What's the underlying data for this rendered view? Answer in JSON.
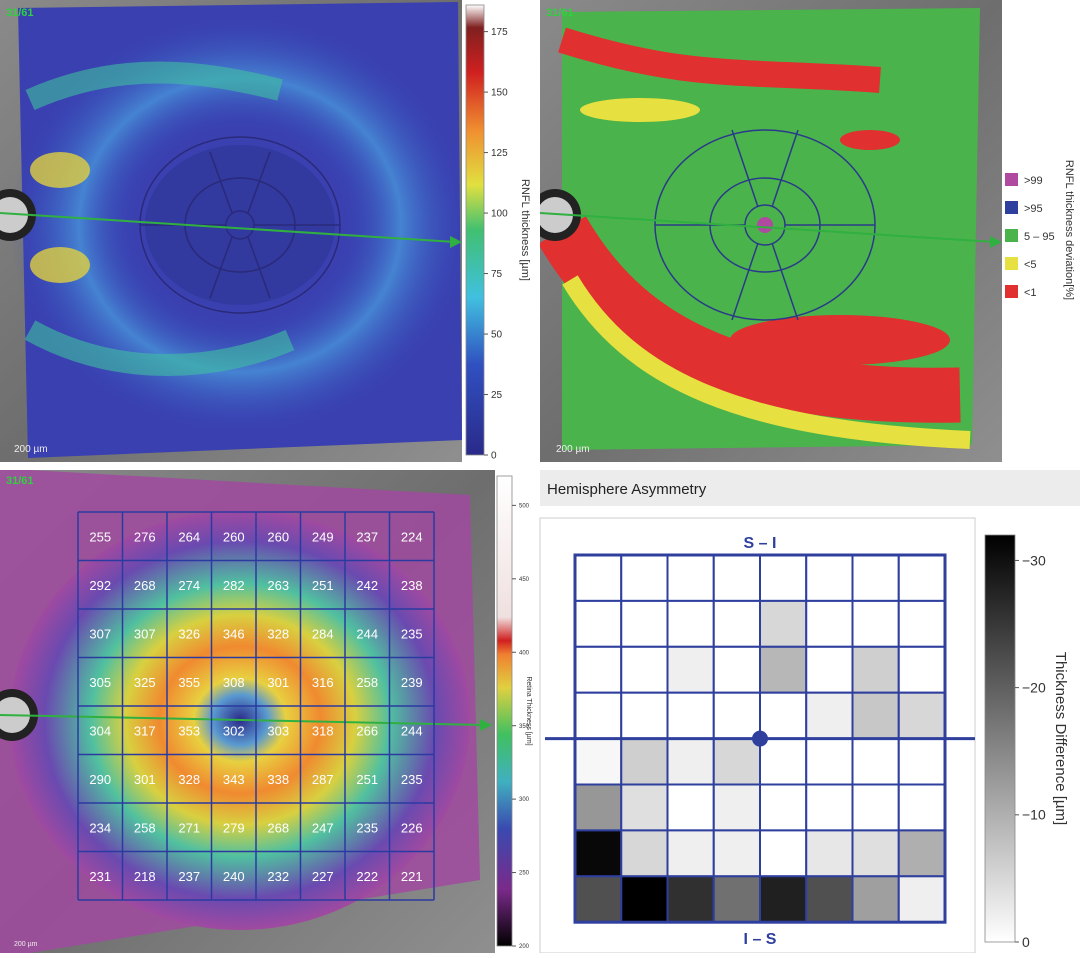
{
  "thickness_map": {
    "image_label": "31/61",
    "scale_label": "200 µm",
    "colorbar": {
      "label": "RNFL thickness [µm]",
      "lim": [
        0,
        186
      ],
      "ticks": [
        0,
        25,
        50,
        75,
        100,
        125,
        150,
        175
      ]
    }
  },
  "deviation_map": {
    "image_label": "31/61",
    "scale_label": "200 µm",
    "legend": {
      "label": "RNFL thickness deviation[%]",
      "items": [
        {
          "label": ">99",
          "color": "#b04aa0"
        },
        {
          "label": ">95",
          "color": "#2e3f9e"
        },
        {
          "label": "5 – 95",
          "color": "#4bb34b"
        },
        {
          "label": "<5",
          "color": "#e6e040"
        },
        {
          "label": "<1",
          "color": "#e03030"
        }
      ]
    }
  },
  "retina_map": {
    "image_label": "31/61",
    "scale_label": "200 µm",
    "colorbar": {
      "label": "Retina Thickness [µm]",
      "lim": [
        200,
        520
      ],
      "ticks": [
        200,
        250,
        300,
        350,
        400,
        450,
        500
      ]
    },
    "grid": [
      [
        255,
        276,
        264,
        260,
        260,
        249,
        237,
        224
      ],
      [
        292,
        268,
        274,
        282,
        263,
        251,
        242,
        238
      ],
      [
        307,
        307,
        326,
        346,
        328,
        284,
        244,
        235
      ],
      [
        305,
        325,
        355,
        308,
        301,
        316,
        258,
        239
      ],
      [
        304,
        317,
        353,
        302,
        303,
        318,
        266,
        244
      ],
      [
        290,
        301,
        328,
        343,
        338,
        287,
        251,
        235
      ],
      [
        234,
        258,
        271,
        279,
        268,
        247,
        235,
        226
      ],
      [
        231,
        218,
        237,
        240,
        232,
        227,
        222,
        221
      ]
    ]
  },
  "asymmetry": {
    "title": "Hemisphere Asymmetry",
    "top_label": "S – I",
    "bottom_label": "I – S",
    "colorbar": {
      "label": "Thickness Difference [µm]",
      "lim": [
        0,
        -32
      ],
      "ticks": [
        0,
        {
          "value": -10,
          "label": "−10"
        },
        {
          "value": -20,
          "label": "−20"
        },
        {
          "value": -30,
          "label": "−30"
        }
      ]
    },
    "cells": [
      [
        0,
        0,
        0,
        0,
        0,
        0,
        0,
        0
      ],
      [
        0,
        0,
        0,
        0,
        -5,
        0,
        0,
        0
      ],
      [
        0,
        0,
        -2,
        0,
        -9,
        0,
        -6,
        0
      ],
      [
        0,
        0,
        0,
        0,
        0,
        -2,
        -7,
        -5
      ],
      [
        -1,
        -6,
        -2,
        -5,
        0,
        0,
        0,
        0
      ],
      [
        -13,
        -4,
        0,
        -2,
        0,
        0,
        0,
        0
      ],
      [
        -31,
        -5,
        -2,
        -2,
        0,
        -3,
        -4,
        -10
      ],
      [
        -22,
        -32,
        -26,
        -18,
        -28,
        -22,
        -12,
        -2
      ]
    ]
  }
}
